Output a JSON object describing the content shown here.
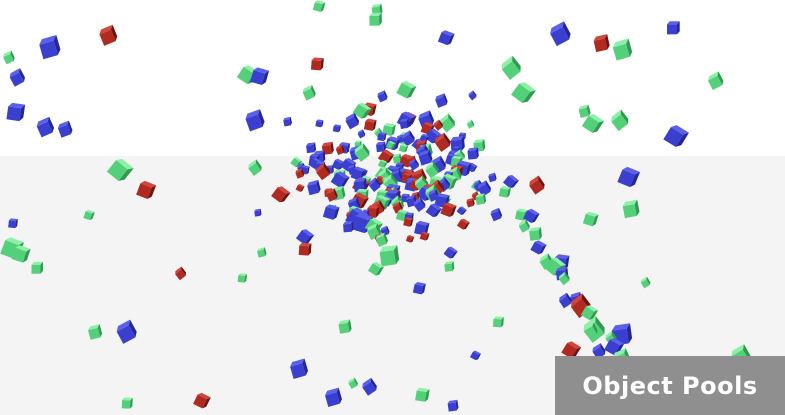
{
  "title": "Object Pools",
  "colors": {
    "blue": "#3a3fd0",
    "green": "#55d07a",
    "red": "#b02a22",
    "sky": "#ffffff",
    "ground": "#f4f4f4",
    "label_bg": "#8f8f8f"
  },
  "scene": {
    "object_kind": "cube",
    "cube_count": 300
  }
}
